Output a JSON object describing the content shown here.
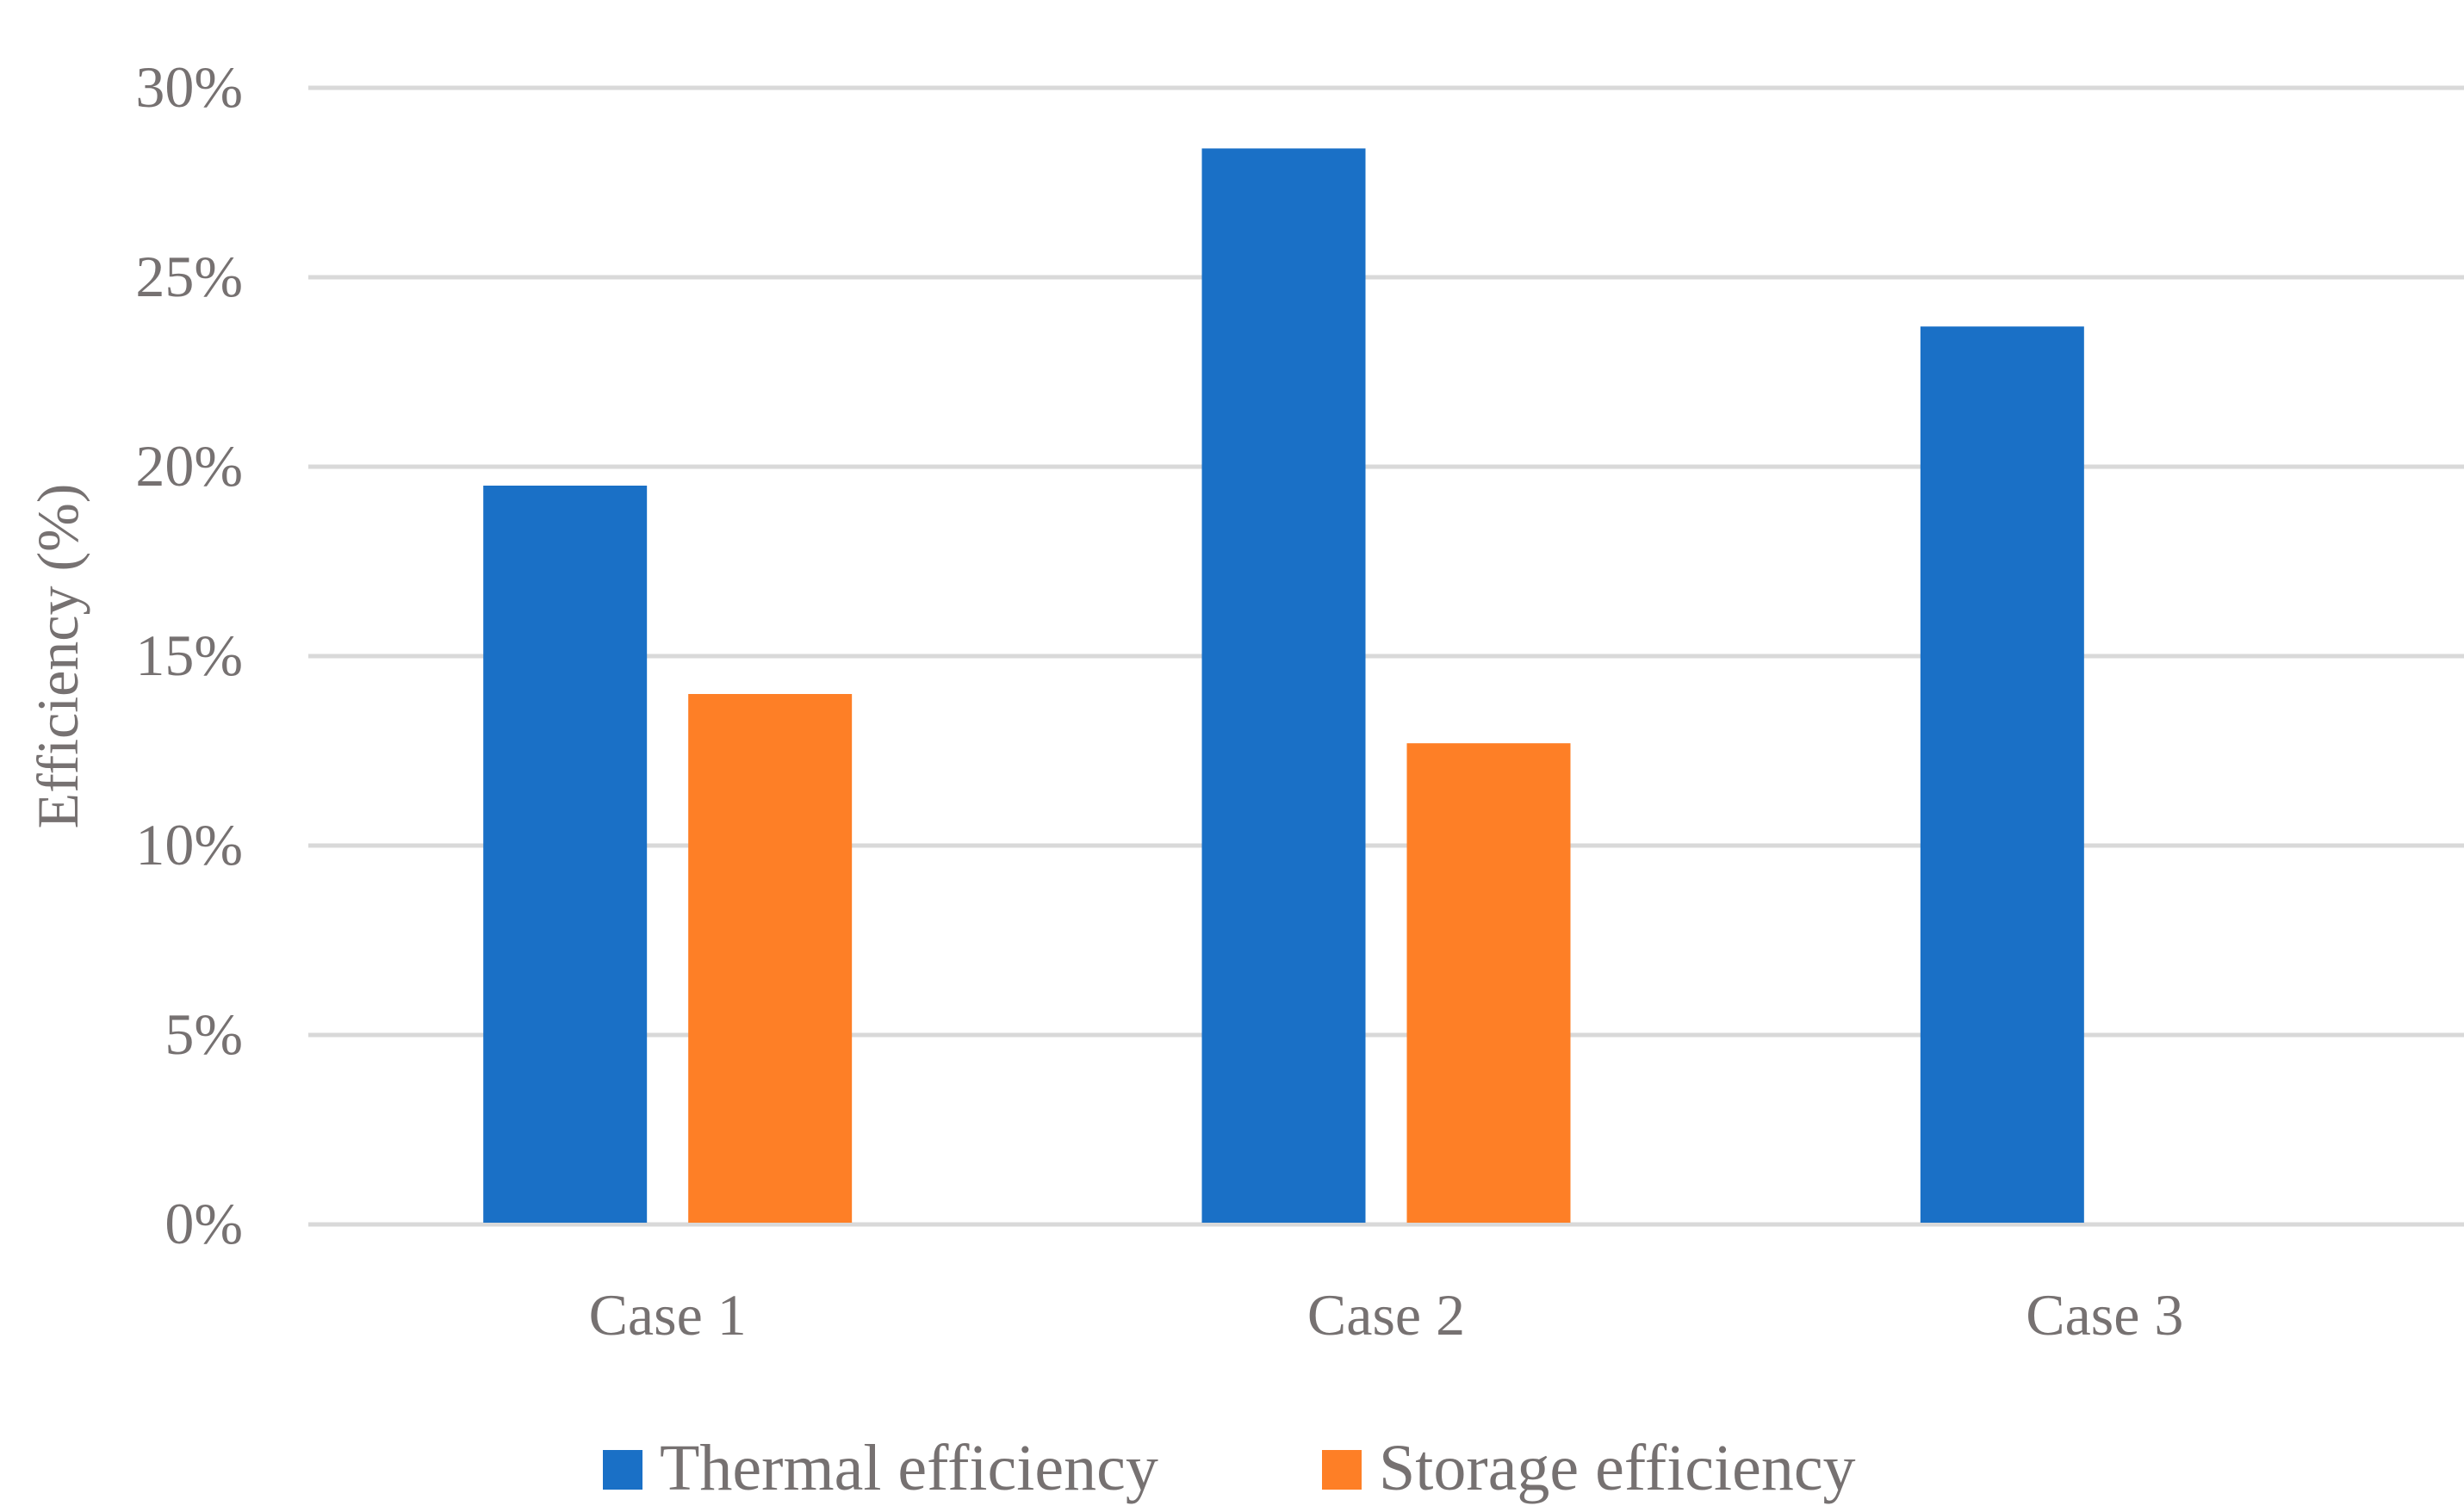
{
  "chart_data": {
    "type": "bar",
    "title": "",
    "xlabel": "",
    "ylabel": "Efficiency (%)",
    "categories": [
      "Case 1",
      "Case 2",
      "Case 3"
    ],
    "series": [
      {
        "name": "Thermal efficiency",
        "color": "#1a70c6",
        "values": [
          19.5,
          28.4,
          23.7
        ]
      },
      {
        "name": "Storage efficiency",
        "color": "#fe7f26",
        "values": [
          14.0,
          12.7,
          null
        ]
      }
    ],
    "ylim": [
      0,
      30
    ],
    "yticks": [
      0,
      5,
      10,
      15,
      20,
      25,
      30
    ],
    "ytick_labels": [
      "0%",
      "5%",
      "10%",
      "15%",
      "20%",
      "25%",
      "30%"
    ],
    "grid": true,
    "legend": "bottom-center"
  }
}
